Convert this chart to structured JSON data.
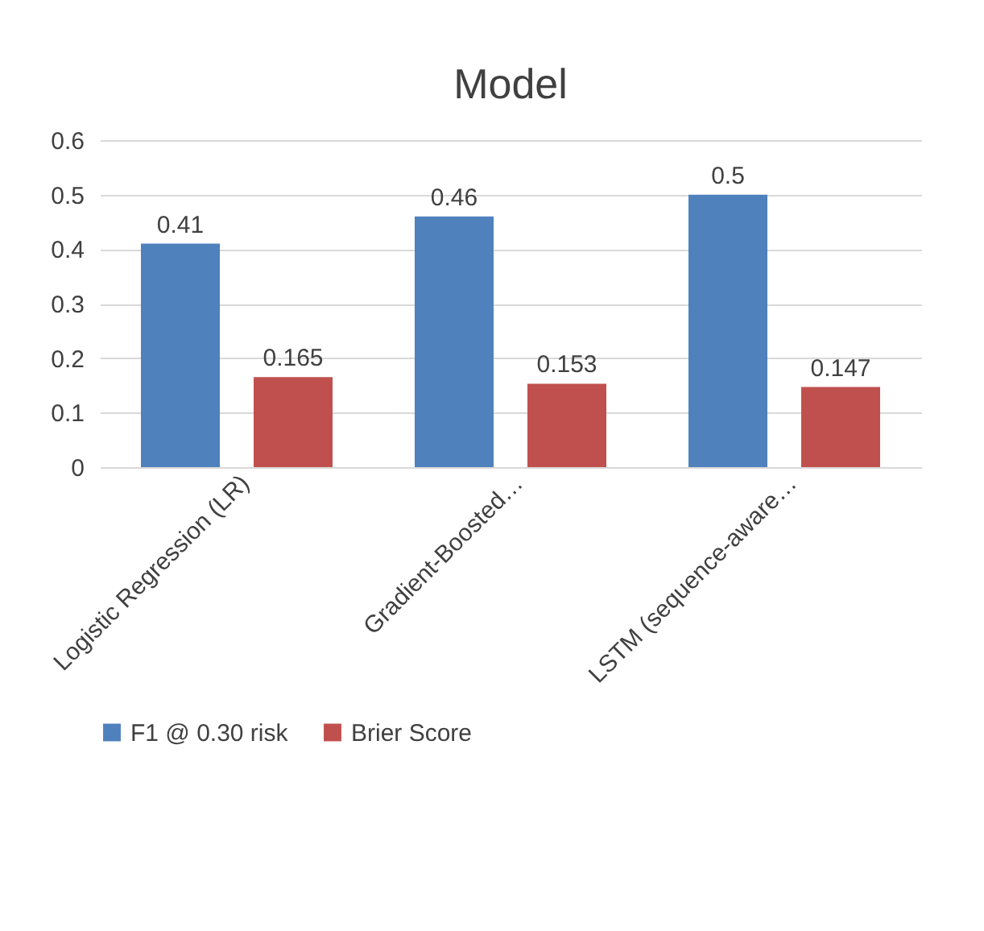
{
  "chart_data": {
    "type": "bar",
    "title": "Model",
    "categories": [
      "Logistic Regression (LR)",
      "Gradient-Boosted…",
      "LSTM (sequence-aware…"
    ],
    "series": [
      {
        "name": "F1 @ 0.30 risk",
        "color": "#4f81bd",
        "values": [
          0.41,
          0.46,
          0.5
        ]
      },
      {
        "name": "Brier Score",
        "color": "#c0504d",
        "values": [
          0.165,
          0.153,
          0.147
        ]
      }
    ],
    "ylim": [
      0,
      0.6
    ],
    "yticks": [
      0,
      0.1,
      0.2,
      0.3,
      0.4,
      0.5,
      0.6
    ],
    "grid": "y",
    "legend": "bottom",
    "data_labels": true
  }
}
